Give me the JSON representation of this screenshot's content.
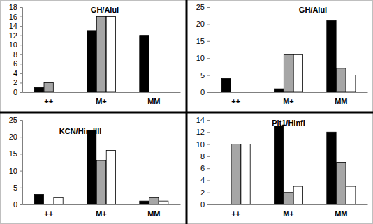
{
  "chart_data": [
    {
      "type": "bar",
      "title": "GH/AluI",
      "categories": [
        "++",
        "M+",
        "MM"
      ],
      "series": [
        {
          "color": "#000000",
          "values": [
            1,
            13,
            12
          ]
        },
        {
          "color": "#a6a6a6",
          "values": [
            2,
            16,
            0
          ]
        },
        {
          "color": "#ffffff",
          "values": [
            0,
            16,
            0
          ]
        }
      ],
      "ylim": [
        0,
        18
      ],
      "yticks": [
        0,
        2,
        4,
        6,
        8,
        10,
        12,
        14,
        16,
        18
      ]
    },
    {
      "type": "bar",
      "title": "GH/AluI",
      "categories": [
        "++",
        "M+",
        "MM"
      ],
      "series": [
        {
          "color": "#000000",
          "values": [
            4,
            1,
            21
          ]
        },
        {
          "color": "#a6a6a6",
          "values": [
            0,
            11,
            7
          ]
        },
        {
          "color": "#ffffff",
          "values": [
            0,
            11,
            5
          ]
        }
      ],
      "ylim": [
        0,
        25
      ],
      "yticks": [
        0,
        5,
        10,
        15,
        20,
        25
      ]
    },
    {
      "type": "bar",
      "title": "KCN/HindIII",
      "categories": [
        "++",
        "M+",
        "MM"
      ],
      "series": [
        {
          "color": "#000000",
          "values": [
            3,
            22,
            1
          ]
        },
        {
          "color": "#a6a6a6",
          "values": [
            0,
            13,
            2
          ]
        },
        {
          "color": "#ffffff",
          "values": [
            2,
            16,
            1
          ]
        }
      ],
      "ylim": [
        0,
        25
      ],
      "yticks": [
        0,
        5,
        10,
        15,
        20,
        25
      ]
    },
    {
      "type": "bar",
      "title": "Pit1/HinfI",
      "categories": [
        "++",
        "M+",
        "MM"
      ],
      "series": [
        {
          "color": "#000000",
          "values": [
            0,
            13,
            12
          ]
        },
        {
          "color": "#a6a6a6",
          "values": [
            10,
            2,
            7
          ]
        },
        {
          "color": "#ffffff",
          "values": [
            10,
            3,
            3
          ]
        }
      ],
      "ylim": [
        0,
        14
      ],
      "yticks": [
        0,
        2,
        4,
        6,
        8,
        10,
        12,
        14
      ]
    }
  ]
}
